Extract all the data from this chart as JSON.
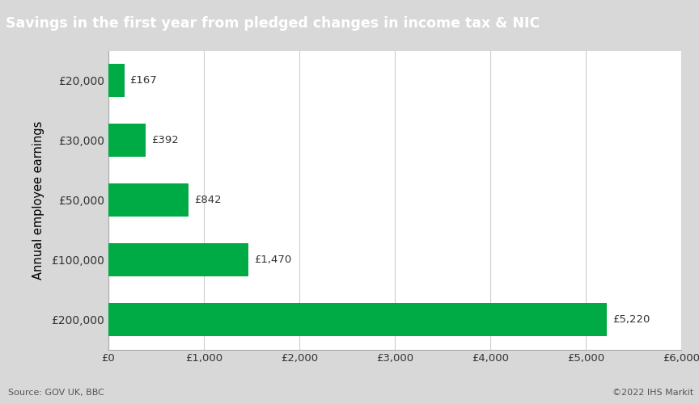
{
  "title": "Savings in the first year from pledged changes in income tax & NIC",
  "categories": [
    "£200,000",
    "£100,000",
    "£50,000",
    "£30,000",
    "£20,000"
  ],
  "values": [
    5220,
    1470,
    842,
    392,
    167
  ],
  "labels": [
    "£5,220",
    "£1,470",
    "£842",
    "£392",
    "£167"
  ],
  "bar_color": "#00AA44",
  "ylabel": "Annual employee earnings",
  "xlim": [
    0,
    6000
  ],
  "xticks": [
    0,
    1000,
    2000,
    3000,
    4000,
    5000,
    6000
  ],
  "xtick_labels": [
    "£0",
    "£1,000",
    "£2,000",
    "£3,000",
    "£4,000",
    "£5,000",
    "£6,000"
  ],
  "source_text": "Source: GOV UK, BBC",
  "copyright_text": "©2022 IHS Markit",
  "title_bg_color": "#757575",
  "title_font_color": "#ffffff",
  "plot_bg_color": "#ffffff",
  "outer_bg_color": "#d8d8d8",
  "grid_color": "#cccccc",
  "bar_height": 0.55
}
